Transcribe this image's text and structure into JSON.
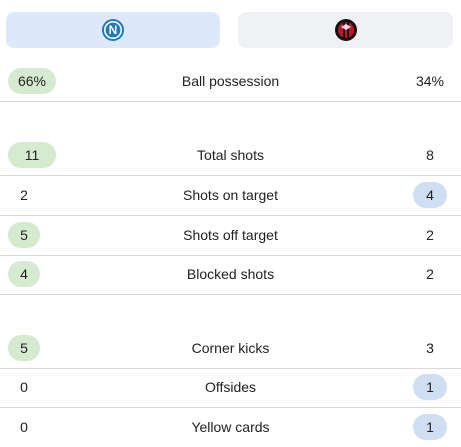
{
  "teams": {
    "home": {
      "logo_icon": "napoli-crest-icon",
      "color": "#1b78c4"
    },
    "away": {
      "logo_icon": "milan-crest-icon",
      "color": "#c8102e"
    }
  },
  "colors": {
    "home_highlight": "#d5ebcf",
    "away_highlight": "#cfdef3"
  },
  "stats": [
    {
      "label": "Ball possession",
      "home": "66%",
      "away": "34%",
      "leader": "home"
    },
    {
      "label": "Total shots",
      "home": "11",
      "away": "8",
      "leader": "home"
    },
    {
      "label": "Shots on target",
      "home": "2",
      "away": "4",
      "leader": "away"
    },
    {
      "label": "Shots off target",
      "home": "5",
      "away": "2",
      "leader": "home"
    },
    {
      "label": "Blocked shots",
      "home": "4",
      "away": "2",
      "leader": "home"
    },
    {
      "label": "Corner kicks",
      "home": "5",
      "away": "3",
      "leader": "home"
    },
    {
      "label": "Offsides",
      "home": "0",
      "away": "1",
      "leader": "away"
    },
    {
      "label": "Yellow cards",
      "home": "0",
      "away": "1",
      "leader": "away"
    }
  ]
}
